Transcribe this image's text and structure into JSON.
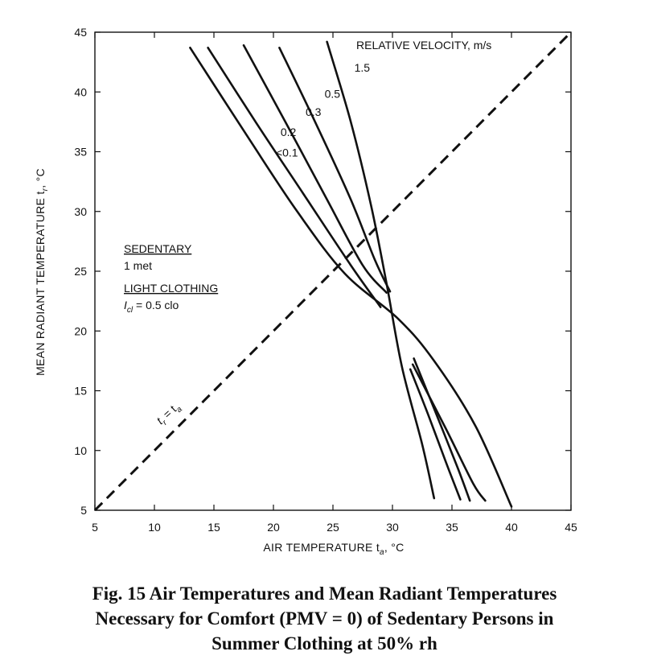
{
  "chart_data": {
    "type": "line",
    "xlabel": "AIR TEMPERATURE t",
    "xlabel_sub": "a",
    "xlabel_unit": ", °C",
    "ylabel": "MEAN RADIANT TEMPERATURE t",
    "ylabel_sub": "r",
    "ylabel_unit": ", °C",
    "xlim": [
      5,
      45
    ],
    "ylim": [
      5,
      45
    ],
    "xticks": [
      5,
      10,
      15,
      20,
      25,
      30,
      35,
      40,
      45
    ],
    "yticks": [
      5,
      10,
      15,
      20,
      25,
      30,
      35,
      40,
      45
    ],
    "grid": false,
    "legend_title": "RELATIVE VELOCITY, m/s",
    "series": [
      {
        "name": "<0.1",
        "points": [
          [
            13.0,
            43.7
          ],
          [
            18.0,
            36.0
          ],
          [
            22.0,
            30.0
          ],
          [
            26.0,
            24.8
          ],
          [
            30.5,
            21.0
          ],
          [
            33.5,
            17.5
          ],
          [
            37.0,
            12.0
          ],
          [
            40.0,
            5.3
          ]
        ]
      },
      {
        "name": "0.2",
        "points": [
          [
            14.5,
            43.7
          ],
          [
            18.5,
            37.5
          ],
          [
            22.5,
            31.5
          ],
          [
            26.5,
            25.5
          ],
          [
            29.0,
            22.0
          ]
        ]
      },
      {
        "name": "0.3",
        "points": [
          [
            17.5,
            43.9
          ],
          [
            21.0,
            37.5
          ],
          [
            24.5,
            31.0
          ],
          [
            27.5,
            25.5
          ],
          [
            29.5,
            23.2
          ]
        ]
      },
      {
        "name": "0.5",
        "points": [
          [
            20.5,
            43.7
          ],
          [
            23.5,
            37.5
          ],
          [
            26.5,
            31.0
          ],
          [
            28.5,
            26.0
          ],
          [
            29.8,
            23.3
          ]
        ]
      },
      {
        "name": "1.5",
        "points": [
          [
            24.5,
            44.2
          ],
          [
            26.5,
            37.5
          ],
          [
            28.2,
            30.5
          ],
          [
            29.5,
            24.0
          ],
          [
            30.8,
            17.0
          ],
          [
            32.5,
            10.5
          ],
          [
            33.5,
            6.0
          ]
        ]
      },
      {
        "name": "0.2",
        "points": [
          [
            31.8,
            17.7
          ],
          [
            33.5,
            13.5
          ],
          [
            35.5,
            8.5
          ],
          [
            36.5,
            5.8
          ]
        ]
      },
      {
        "name": "0.3",
        "points": [
          [
            31.7,
            17.2
          ],
          [
            34.5,
            11.8
          ],
          [
            36.8,
            7.2
          ],
          [
            37.8,
            5.8
          ]
        ]
      },
      {
        "name": "0.5",
        "points": [
          [
            31.5,
            16.8
          ],
          [
            33.0,
            13.0
          ],
          [
            34.5,
            9.0
          ],
          [
            35.7,
            5.9
          ]
        ]
      }
    ],
    "diagonal": [
      [
        5,
        5
      ],
      [
        45,
        45
      ]
    ],
    "diagonal_label": "t",
    "diagonal_label_sub_r": "r",
    "diagonal_label_eq": " = t",
    "diagonal_label_sub_a": "a",
    "annotations": {
      "sedentary": "SEDENTARY",
      "met": "1 met",
      "light_clothing": "LIGHT CLOTHING",
      "icl_symbol": "I",
      "icl_sub": "cl",
      "icl_value": " = 0.5 clo"
    },
    "curve_labels": [
      {
        "text": "<0.1",
        "x": 20.2,
        "y": 34.6
      },
      {
        "text": "0.2",
        "x": 20.6,
        "y": 36.3
      },
      {
        "text": "0.3",
        "x": 22.7,
        "y": 38.0
      },
      {
        "text": "0.5",
        "x": 24.3,
        "y": 39.5
      },
      {
        "text": "1.5",
        "x": 26.8,
        "y": 41.7
      }
    ]
  },
  "caption": {
    "line1": "Fig. 15    Air Temperatures and Mean Radiant Temperatures",
    "line2": "Necessary for Comfort (PMV = 0) of Sedentary Persons in",
    "line3": "Summer Clothing at 50% rh"
  }
}
